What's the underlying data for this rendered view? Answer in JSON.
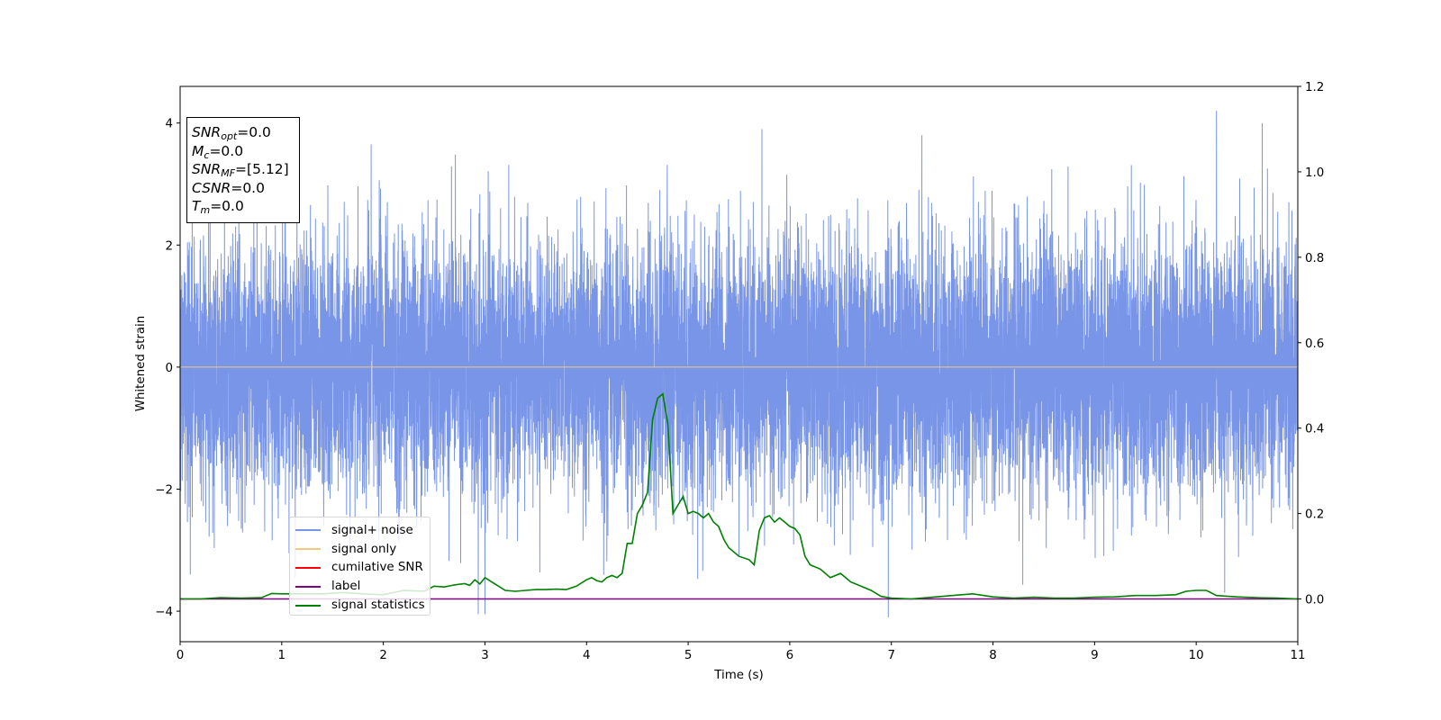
{
  "chart_data": {
    "type": "line",
    "xlabel": "Time (s)",
    "ylabel": "Whitened strain",
    "xlim": [
      0,
      11
    ],
    "ylim": [
      -4.5,
      4.6
    ],
    "y2lim": [
      -0.1,
      1.2
    ],
    "xticks": [
      "0",
      "1",
      "2",
      "3",
      "4",
      "5",
      "6",
      "7",
      "8",
      "9",
      "10",
      "11"
    ],
    "yticks": [
      "4",
      "2",
      "0",
      "−2",
      "−4"
    ],
    "y2ticks": [
      "0.0",
      "0.2",
      "0.4",
      "0.6",
      "0.8",
      "1.0",
      "1.2"
    ],
    "grid": false,
    "legend_position": "lower-left",
    "series": [
      {
        "name": "signal+ noise",
        "color": "#7895e8",
        "axis": "left",
        "description_of_values": "whitened noise, approx. zero mean, unit variance, peaks between -4.1 and 4.2",
        "peaks": [
          {
            "x": 1.88,
            "y": 3.65
          },
          {
            "x": 7.3,
            "y": 3.8
          },
          {
            "x": 10.2,
            "y": 4.2
          },
          {
            "x": 10.65,
            "y": 4.0
          },
          {
            "x": 6.97,
            "y": -4.1
          },
          {
            "x": 0.1,
            "y": -3.4
          },
          {
            "x": 10.28,
            "y": -3.7
          }
        ]
      },
      {
        "name": "signal only",
        "color": "#f5c77e",
        "axis": "left",
        "x": [
          0,
          11
        ],
        "y": [
          0,
          0
        ]
      },
      {
        "name": "cumilative SNR",
        "color": "#ff0000",
        "axis": "right",
        "x": [],
        "y": []
      },
      {
        "name": "label",
        "color": "#800080",
        "axis": "right",
        "x": [
          0,
          11
        ],
        "y": [
          0,
          0
        ]
      },
      {
        "name": "signal statistics",
        "color": "#008000",
        "axis": "right",
        "x": [
          0,
          0.2,
          0.4,
          0.6,
          0.8,
          0.9,
          1.0,
          1.2,
          1.4,
          1.6,
          1.8,
          2.0,
          2.2,
          2.4,
          2.5,
          2.6,
          2.7,
          2.8,
          2.85,
          2.9,
          2.95,
          3.0,
          3.1,
          3.2,
          3.3,
          3.4,
          3.5,
          3.6,
          3.7,
          3.8,
          3.9,
          4.0,
          4.05,
          4.1,
          4.15,
          4.2,
          4.25,
          4.3,
          4.35,
          4.4,
          4.45,
          4.5,
          4.55,
          4.6,
          4.65,
          4.7,
          4.75,
          4.8,
          4.85,
          4.9,
          4.95,
          5.0,
          5.05,
          5.1,
          5.15,
          5.2,
          5.25,
          5.3,
          5.35,
          5.4,
          5.5,
          5.6,
          5.65,
          5.7,
          5.75,
          5.8,
          5.85,
          5.9,
          5.95,
          6.0,
          6.05,
          6.1,
          6.15,
          6.2,
          6.3,
          6.4,
          6.5,
          6.6,
          6.7,
          6.8,
          6.9,
          7.0,
          7.2,
          7.4,
          7.6,
          7.8,
          8.0,
          8.2,
          8.4,
          8.6,
          8.8,
          9.0,
          9.2,
          9.4,
          9.6,
          9.8,
          9.9,
          10.0,
          10.1,
          10.2,
          10.4,
          10.6,
          10.8,
          11.0
        ],
        "y": [
          0.0,
          0.0,
          0.003,
          0.002,
          0.003,
          0.013,
          0.012,
          0.012,
          0.012,
          0.015,
          0.012,
          0.01,
          0.02,
          0.018,
          0.03,
          0.028,
          0.033,
          0.036,
          0.032,
          0.045,
          0.035,
          0.05,
          0.035,
          0.02,
          0.018,
          0.02,
          0.022,
          0.022,
          0.023,
          0.022,
          0.03,
          0.045,
          0.05,
          0.043,
          0.04,
          0.05,
          0.055,
          0.05,
          0.06,
          0.13,
          0.13,
          0.2,
          0.22,
          0.25,
          0.42,
          0.47,
          0.48,
          0.41,
          0.2,
          0.22,
          0.24,
          0.2,
          0.205,
          0.2,
          0.19,
          0.2,
          0.18,
          0.17,
          0.14,
          0.12,
          0.1,
          0.092,
          0.08,
          0.16,
          0.19,
          0.195,
          0.18,
          0.19,
          0.18,
          0.17,
          0.165,
          0.15,
          0.1,
          0.08,
          0.07,
          0.05,
          0.06,
          0.04,
          0.03,
          0.02,
          0.006,
          0.002,
          0.0,
          0.004,
          0.008,
          0.012,
          0.005,
          0.002,
          0.004,
          0.002,
          0.002,
          0.004,
          0.005,
          0.008,
          0.008,
          0.01,
          0.018,
          0.02,
          0.02,
          0.008,
          0.005,
          0.003,
          0.002,
          0.0
        ]
      }
    ]
  },
  "info_box": {
    "snr_opt_base": "SNR",
    "snr_opt_sub": "opt",
    "snr_opt_value": "=0.0",
    "mc_base": "M",
    "mc_sub": "c",
    "mc_value": "=0.0",
    "snr_mf_base": "SNR",
    "snr_mf_sub": "MF",
    "snr_mf_value": "=[5.12]",
    "csnr_base": "CSNR",
    "csnr_value": "=0.0",
    "tm_base": "T",
    "tm_sub": "m",
    "tm_value": "=0.0"
  },
  "legend": {
    "items": [
      {
        "label": "signal+ noise",
        "color": "#7895e8"
      },
      {
        "label": "signal only",
        "color": "#f5c77e"
      },
      {
        "label": "cumilative SNR",
        "color": "#ff0000"
      },
      {
        "label": "label",
        "color": "#800080"
      },
      {
        "label": "signal statistics",
        "color": "#008000"
      }
    ]
  }
}
